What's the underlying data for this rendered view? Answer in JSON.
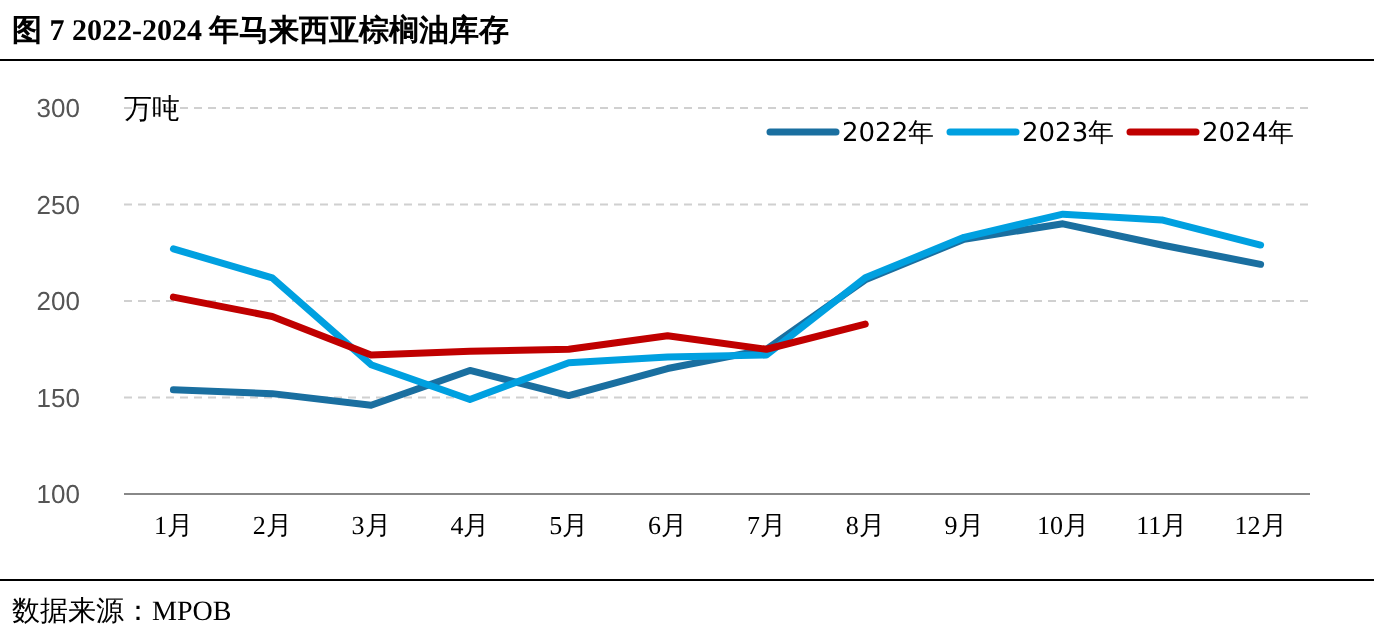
{
  "chart_data": {
    "type": "line",
    "title": "图 7 2022-2024 年马来西亚棕榈油库存",
    "ylabel": "万吨",
    "annotations": [
      "数据来源：MPOB"
    ],
    "categories": [
      "1月",
      "2月",
      "3月",
      "4月",
      "5月",
      "6月",
      "7月",
      "8月",
      "9月",
      "10月",
      "11月",
      "12月"
    ],
    "series": [
      {
        "name": "2022年",
        "color": "#1a6fa0",
        "values": [
          154,
          152,
          146,
          164,
          151,
          165,
          175,
          211,
          232,
          240,
          229,
          219
        ]
      },
      {
        "name": "2023年",
        "color": "#00a0e0",
        "values": [
          227,
          212,
          167,
          149,
          168,
          171,
          172,
          212,
          233,
          245,
          242,
          229
        ]
      },
      {
        "name": "2024年",
        "color": "#c00000",
        "values": [
          202,
          192,
          172,
          174,
          175,
          182,
          175,
          188,
          null,
          null,
          null,
          null
        ]
      }
    ],
    "ylim": [
      100,
      300
    ],
    "yticks": [
      100,
      150,
      200,
      250,
      300
    ],
    "grid": "y",
    "legend": "top right",
    "marker": "none",
    "line_style": "solid"
  }
}
